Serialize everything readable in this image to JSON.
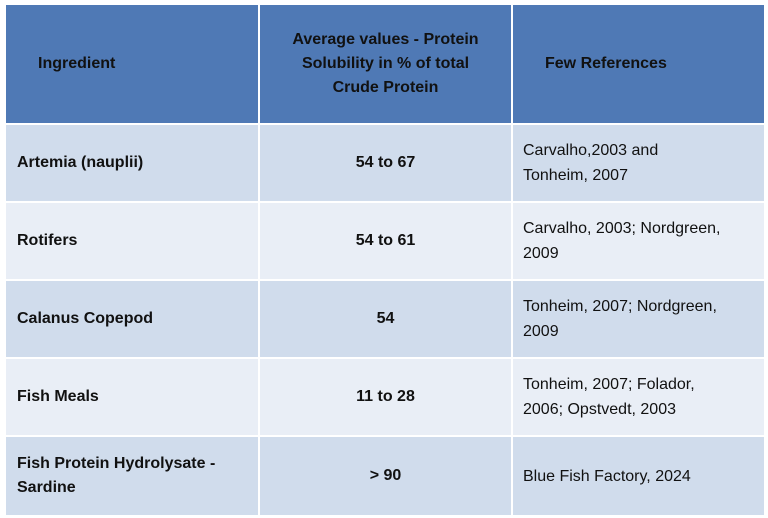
{
  "table": {
    "headers": {
      "ingredient": "Ingredient",
      "value_line1": "Average values - Protein",
      "value_line2": "Solubility in % of total",
      "value_line3": "Crude Protein",
      "references": "Few References"
    },
    "rows": [
      {
        "ingredient": "Artemia (nauplii)",
        "value": "54 to 67",
        "ref_line1": "Carvalho,2003 and",
        "ref_line2": "Tonheim, 2007"
      },
      {
        "ingredient": "Rotifers",
        "value": "54 to 61",
        "ref_line1": "Carvalho, 2003; Nordgreen,",
        "ref_line2": "2009"
      },
      {
        "ingredient": "Calanus Copepod",
        "value": "54",
        "ref_line1": "Tonheim, 2007; Nordgreen,",
        "ref_line2": "2009"
      },
      {
        "ingredient": "Fish Meals",
        "value": "11 to 28",
        "ref_line1": "Tonheim, 2007; Folador,",
        "ref_line2": "2006; Opstvedt, 2003"
      },
      {
        "ingredient_line1": "Fish Protein Hydrolysate -",
        "ingredient_line2": "Sardine",
        "value": "> 90",
        "ref_line1": "Blue Fish Factory, 2024"
      }
    ]
  }
}
